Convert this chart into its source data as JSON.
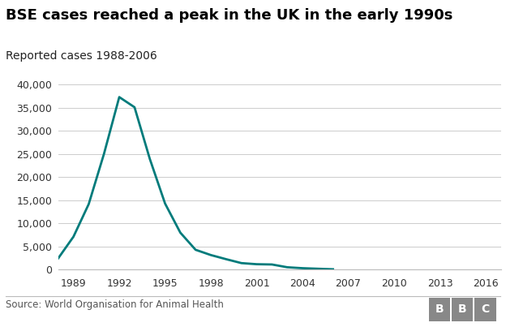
{
  "title": "BSE cases reached a peak in the UK in the early 1990s",
  "subtitle": "Reported cases 1988-2006",
  "source": "Source: World Organisation for Animal Health",
  "line_color": "#007b7b",
  "background_color": "#ffffff",
  "grid_color": "#cccccc",
  "years": [
    1988,
    1989,
    1990,
    1991,
    1992,
    1993,
    1994,
    1995,
    1996,
    1997,
    1998,
    1999,
    2000,
    2001,
    2002,
    2003,
    2004,
    2005,
    2006
  ],
  "values": [
    2469,
    7137,
    14181,
    25032,
    37280,
    35090,
    23945,
    14302,
    8016,
    4312,
    3179,
    2286,
    1443,
    1202,
    1144,
    549,
    343,
    225,
    114
  ],
  "xtick_labels": [
    "1989",
    "1992",
    "1995",
    "1998",
    "2001",
    "2004",
    "2007",
    "2010",
    "2013",
    "2016"
  ],
  "xtick_positions": [
    1989,
    1992,
    1995,
    1998,
    2001,
    2004,
    2007,
    2010,
    2013,
    2016
  ],
  "ylim": [
    0,
    42000
  ],
  "ytick_values": [
    0,
    5000,
    10000,
    15000,
    20000,
    25000,
    30000,
    35000,
    40000
  ],
  "line_width": 2.0,
  "title_fontsize": 13,
  "subtitle_fontsize": 10,
  "tick_fontsize": 9,
  "source_fontsize": 8.5,
  "bbc_fontsize": 10,
  "xlim_left": 1988,
  "xlim_right": 2017
}
